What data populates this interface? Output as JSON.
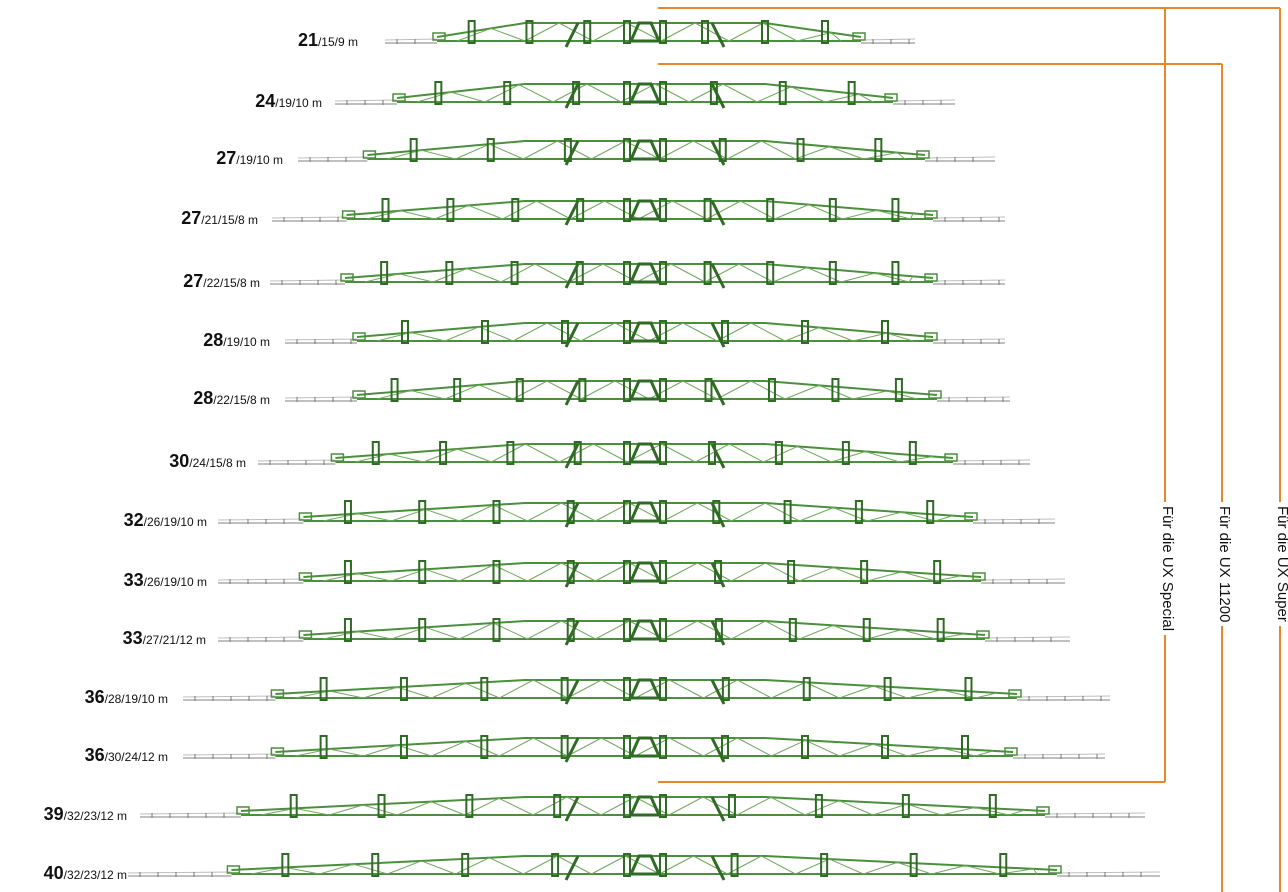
{
  "colors": {
    "boom_green": "#4a8f3c",
    "boom_grey": "#9a9a9a",
    "bracket_orange": "#e8862a",
    "text": "#111111"
  },
  "rows": [
    {
      "major": "21",
      "minor": "/15/9 m",
      "sections": 3
    },
    {
      "major": "24",
      "minor": "/19/10 m",
      "sections": 3
    },
    {
      "major": "27",
      "minor": "/19/10 m",
      "sections": 3
    },
    {
      "major": "27",
      "minor": "/21/15/8 m",
      "sections": 4
    },
    {
      "major": "27",
      "minor": "/22/15/8 m",
      "sections": 4
    },
    {
      "major": "28",
      "minor": "/19/10 m",
      "sections": 3
    },
    {
      "major": "28",
      "minor": "/22/15/8 m",
      "sections": 4
    },
    {
      "major": "30",
      "minor": "/24/15/8 m",
      "sections": 4
    },
    {
      "major": "32",
      "minor": "/26/19/10 m",
      "sections": 4
    },
    {
      "major": "33",
      "minor": "/26/19/10 m",
      "sections": 4
    },
    {
      "major": "33",
      "minor": "/27/21/12 m",
      "sections": 4
    },
    {
      "major": "36",
      "minor": "/28/19/10 m",
      "sections": 4
    },
    {
      "major": "36",
      "minor": "/30/24/12 m",
      "sections": 4
    },
    {
      "major": "39",
      "minor": "/32/23/12 m",
      "sections": 4
    },
    {
      "major": "40",
      "minor": "/32/23/12 m",
      "sections": 4
    }
  ],
  "brackets": [
    {
      "label": "Für die UX Special",
      "first_row": 1,
      "last_row": 13
    },
    {
      "label": "Für die UX 11200",
      "first_row": 2,
      "last_row": 15
    },
    {
      "label": "Für die UX Super",
      "first_row": 1,
      "last_row": 15
    }
  ]
}
